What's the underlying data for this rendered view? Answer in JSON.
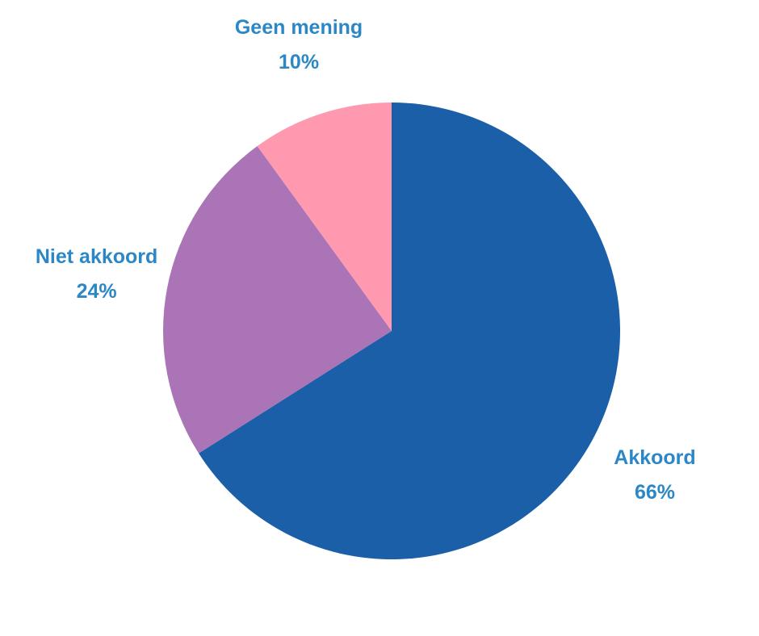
{
  "chart_data": {
    "type": "pie",
    "categories": [
      "Akkoord",
      "Niet akkoord",
      "Geen mening"
    ],
    "values": [
      66,
      24,
      10
    ],
    "value_labels": [
      "66%",
      "24%",
      "10%"
    ],
    "colors": [
      "#1a5fa8",
      "#ab74b6",
      "#ff99b0"
    ],
    "label_color": "#2b87c6"
  }
}
